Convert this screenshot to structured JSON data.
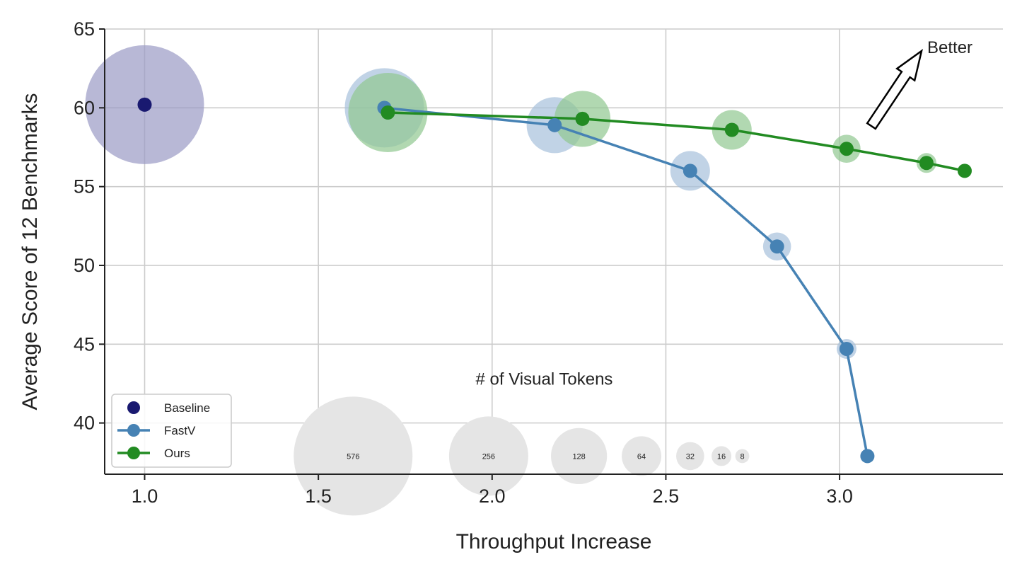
{
  "chart_data": {
    "type": "scatter",
    "xlabel": "Throughput Increase",
    "ylabel": "Average Score of 12 Benchmarks",
    "xlim": [
      0.885,
      3.47
    ],
    "ylim": [
      36.75,
      65
    ],
    "xticks": [
      {
        "value": 1.0,
        "label": "1.0"
      },
      {
        "value": 1.5,
        "label": "1.5"
      },
      {
        "value": 2.0,
        "label": "2.0"
      },
      {
        "value": 2.5,
        "label": "2.5"
      },
      {
        "value": 3.0,
        "label": "3.0"
      }
    ],
    "yticks": [
      {
        "value": 40,
        "label": "40"
      },
      {
        "value": 45,
        "label": "45"
      },
      {
        "value": 50,
        "label": "50"
      },
      {
        "value": 55,
        "label": "55"
      },
      {
        "value": 60,
        "label": "60"
      },
      {
        "value": 65,
        "label": "65"
      }
    ],
    "grid": true,
    "legend_position": "bottom-left",
    "series": [
      {
        "name": "Baseline",
        "color": "#191970",
        "bubble_color": "#9a9ac5",
        "line": false,
        "points": [
          {
            "x": 1.0,
            "y": 60.2,
            "tokens": 576
          }
        ]
      },
      {
        "name": "FastV",
        "color": "#4682b4",
        "bubble_color": "#a7c0dc",
        "line": true,
        "points": [
          {
            "x": 1.69,
            "y": 60.0,
            "tokens": 256
          },
          {
            "x": 2.18,
            "y": 58.9,
            "tokens": 128
          },
          {
            "x": 2.57,
            "y": 56.0,
            "tokens": 64
          },
          {
            "x": 2.82,
            "y": 51.2,
            "tokens": 32
          },
          {
            "x": 3.02,
            "y": 44.7,
            "tokens": 16
          },
          {
            "x": 3.08,
            "y": 37.9,
            "tokens": 8
          }
        ]
      },
      {
        "name": "Ours",
        "color": "#228b22",
        "bubble_color": "#90c890",
        "line": true,
        "points": [
          {
            "x": 1.7,
            "y": 59.7,
            "tokens": 256
          },
          {
            "x": 2.26,
            "y": 59.3,
            "tokens": 128
          },
          {
            "x": 2.69,
            "y": 58.6,
            "tokens": 64
          },
          {
            "x": 3.02,
            "y": 57.4,
            "tokens": 32
          },
          {
            "x": 3.25,
            "y": 56.5,
            "tokens": 16
          },
          {
            "x": 3.36,
            "y": 56.0,
            "tokens": 8
          }
        ]
      }
    ],
    "size_legend": {
      "title": "# of Visual Tokens",
      "color": "#e5e5e5",
      "y": 37.9,
      "items": [
        {
          "tokens": 576,
          "label": "576",
          "x": 1.6
        },
        {
          "tokens": 256,
          "label": "256",
          "x": 1.99
        },
        {
          "tokens": 128,
          "label": "128",
          "x": 2.25
        },
        {
          "tokens": 64,
          "label": "64",
          "x": 2.43
        },
        {
          "tokens": 32,
          "label": "32",
          "x": 2.57
        },
        {
          "tokens": 16,
          "label": "16",
          "x": 2.66
        },
        {
          "tokens": 8,
          "label": "8",
          "x": 2.72
        }
      ]
    },
    "annotations": [
      {
        "text": "Better"
      }
    ]
  }
}
